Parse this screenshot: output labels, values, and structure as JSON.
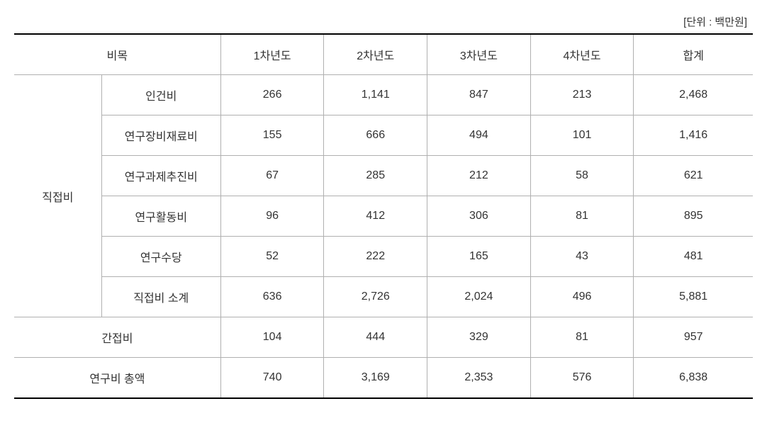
{
  "unit_label": "[단위 : 백만원]",
  "table": {
    "type": "table",
    "columns": {
      "category": "비목",
      "year1": "1차년도",
      "year2": "2차년도",
      "year3": "3차년도",
      "year4": "4차년도",
      "total": "합계"
    },
    "direct_cost": {
      "group_label": "직접비",
      "rows": [
        {
          "label": "인건비",
          "year1": "266",
          "year2": "1,141",
          "year3": "847",
          "year4": "213",
          "total": "2,468"
        },
        {
          "label": "연구장비재료비",
          "year1": "155",
          "year2": "666",
          "year3": "494",
          "year4": "101",
          "total": "1,416"
        },
        {
          "label": "연구과제추진비",
          "year1": "67",
          "year2": "285",
          "year3": "212",
          "year4": "58",
          "total": "621"
        },
        {
          "label": "연구활동비",
          "year1": "96",
          "year2": "412",
          "year3": "306",
          "year4": "81",
          "total": "895"
        },
        {
          "label": "연구수당",
          "year1": "52",
          "year2": "222",
          "year3": "165",
          "year4": "43",
          "total": "481"
        },
        {
          "label": "직접비 소계",
          "year1": "636",
          "year2": "2,726",
          "year3": "2,024",
          "year4": "496",
          "total": "5,881"
        }
      ]
    },
    "indirect_cost": {
      "label": "간접비",
      "year1": "104",
      "year2": "444",
      "year3": "329",
      "year4": "81",
      "total": "957"
    },
    "grand_total": {
      "label": "연구비 총액",
      "year1": "740",
      "year2": "3,169",
      "year3": "2,353",
      "year4": "576",
      "total": "6,838"
    },
    "styling": {
      "border_color": "#b0b0b0",
      "outer_border_color": "#000000",
      "background_color": "#ffffff",
      "text_color": "#333333",
      "font_size": 16,
      "cell_padding": "16px 8px",
      "text_align": "center",
      "column_widths": {
        "category_main": "11%",
        "category_sub": "15%",
        "year": "13%",
        "total": "15%"
      }
    }
  }
}
